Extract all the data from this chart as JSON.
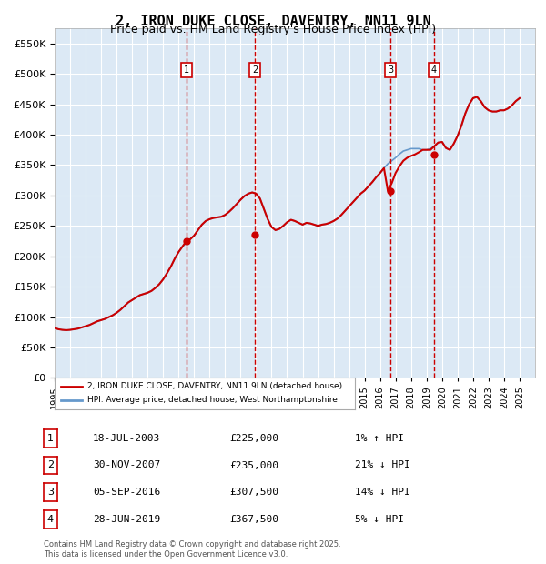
{
  "title": "2, IRON DUKE CLOSE, DAVENTRY, NN11 9LN",
  "subtitle": "Price paid vs. HM Land Registry's House Price Index (HPI)",
  "ylabel": "",
  "xlabel": "",
  "ylim": [
    0,
    575000
  ],
  "yticks": [
    0,
    50000,
    100000,
    150000,
    200000,
    250000,
    300000,
    350000,
    400000,
    450000,
    500000,
    550000
  ],
  "ytick_labels": [
    "£0",
    "£50K",
    "£100K",
    "£150K",
    "£200K",
    "£250K",
    "£300K",
    "£350K",
    "£400K",
    "£450K",
    "£500K",
    "£550K"
  ],
  "xlim_start": 1995.0,
  "xlim_end": 2026.0,
  "background_color": "#dce9f5",
  "plot_bg_color": "#dce9f5",
  "grid_color": "#ffffff",
  "red_line_color": "#cc0000",
  "blue_line_color": "#6699cc",
  "transactions": [
    {
      "num": 1,
      "date": "18-JUL-2003",
      "price": 225000,
      "pct": "1%",
      "dir": "↑",
      "x": 2003.54
    },
    {
      "num": 2,
      "date": "30-NOV-2007",
      "price": 235000,
      "pct": "21%",
      "dir": "↓",
      "x": 2007.92
    },
    {
      "num": 3,
      "date": "05-SEP-2016",
      "price": 307500,
      "pct": "14%",
      "dir": "↓",
      "x": 2016.68
    },
    {
      "num": 4,
      "date": "28-JUN-2019",
      "price": 367500,
      "pct": "5%",
      "dir": "↓",
      "x": 2019.49
    }
  ],
  "legend_property": "2, IRON DUKE CLOSE, DAVENTRY, NN11 9LN (detached house)",
  "legend_hpi": "HPI: Average price, detached house, West Northamptonshire",
  "footer": "Contains HM Land Registry data © Crown copyright and database right 2025.\nThis data is licensed under the Open Government Licence v3.0.",
  "hpi_data": {
    "years": [
      1995.0,
      1995.25,
      1995.5,
      1995.75,
      1996.0,
      1996.25,
      1996.5,
      1996.75,
      1997.0,
      1997.25,
      1997.5,
      1997.75,
      1998.0,
      1998.25,
      1998.5,
      1998.75,
      1999.0,
      1999.25,
      1999.5,
      1999.75,
      2000.0,
      2000.25,
      2000.5,
      2000.75,
      2001.0,
      2001.25,
      2001.5,
      2001.75,
      2002.0,
      2002.25,
      2002.5,
      2002.75,
      2003.0,
      2003.25,
      2003.5,
      2003.75,
      2004.0,
      2004.25,
      2004.5,
      2004.75,
      2005.0,
      2005.25,
      2005.5,
      2005.75,
      2006.0,
      2006.25,
      2006.5,
      2006.75,
      2007.0,
      2007.25,
      2007.5,
      2007.75,
      2008.0,
      2008.25,
      2008.5,
      2008.75,
      2009.0,
      2009.25,
      2009.5,
      2009.75,
      2010.0,
      2010.25,
      2010.5,
      2010.75,
      2011.0,
      2011.25,
      2011.5,
      2011.75,
      2012.0,
      2012.25,
      2012.5,
      2012.75,
      2013.0,
      2013.25,
      2013.5,
      2013.75,
      2014.0,
      2014.25,
      2014.5,
      2014.75,
      2015.0,
      2015.25,
      2015.5,
      2015.75,
      2016.0,
      2016.25,
      2016.5,
      2016.75,
      2017.0,
      2017.25,
      2017.5,
      2017.75,
      2018.0,
      2018.25,
      2018.5,
      2018.75,
      2019.0,
      2019.25,
      2019.5,
      2019.75,
      2020.0,
      2020.25,
      2020.5,
      2020.75,
      2021.0,
      2021.25,
      2021.5,
      2021.75,
      2022.0,
      2022.25,
      2022.5,
      2022.75,
      2023.0,
      2023.25,
      2023.5,
      2023.75,
      2024.0,
      2024.25,
      2024.5,
      2024.75,
      2025.0
    ],
    "hpi_values": [
      82000,
      80000,
      79000,
      78500,
      79000,
      80000,
      81000,
      83000,
      85000,
      87000,
      90000,
      93000,
      95000,
      97000,
      100000,
      103000,
      107000,
      112000,
      118000,
      124000,
      128000,
      132000,
      136000,
      138000,
      140000,
      143000,
      148000,
      154000,
      162000,
      172000,
      183000,
      196000,
      207000,
      216000,
      222000,
      228000,
      234000,
      243000,
      252000,
      258000,
      261000,
      263000,
      264000,
      265000,
      268000,
      273000,
      279000,
      286000,
      293000,
      299000,
      303000,
      305000,
      303000,
      295000,
      278000,
      261000,
      248000,
      243000,
      245000,
      250000,
      256000,
      260000,
      258000,
      255000,
      252000,
      255000,
      254000,
      252000,
      250000,
      252000,
      253000,
      255000,
      258000,
      262000,
      268000,
      275000,
      282000,
      289000,
      296000,
      303000,
      308000,
      315000,
      322000,
      330000,
      337000,
      345000,
      352000,
      357000,
      362000,
      368000,
      373000,
      375000,
      377000,
      377000,
      377000,
      375000,
      375000,
      377000,
      381000,
      387000,
      388000,
      378000,
      375000,
      385000,
      398000,
      415000,
      435000,
      450000,
      460000,
      462000,
      455000,
      445000,
      440000,
      438000,
      438000,
      440000,
      440000,
      443000,
      448000,
      455000,
      460000
    ],
    "property_values": [
      82000,
      80000,
      79000,
      78500,
      79000,
      80000,
      81000,
      83000,
      85000,
      87000,
      90000,
      93000,
      95000,
      97000,
      100000,
      103000,
      107000,
      112000,
      118000,
      124000,
      128000,
      132000,
      136000,
      138000,
      140000,
      143000,
      148000,
      154000,
      162000,
      172000,
      183000,
      196000,
      207000,
      216000,
      225000,
      228000,
      234000,
      243000,
      252000,
      258000,
      261000,
      263000,
      264000,
      265000,
      268000,
      273000,
      279000,
      286000,
      293000,
      299000,
      303000,
      305000,
      303000,
      295000,
      278000,
      261000,
      248000,
      243000,
      245000,
      250000,
      256000,
      260000,
      258000,
      255000,
      252000,
      255000,
      254000,
      252000,
      250000,
      252000,
      253000,
      255000,
      258000,
      262000,
      268000,
      275000,
      282000,
      289000,
      296000,
      303000,
      308000,
      315000,
      322000,
      330000,
      337000,
      345000,
      307500,
      320000,
      337000,
      348000,
      357000,
      362000,
      365000,
      367500,
      371000,
      375000,
      375000,
      375000,
      381000,
      387000,
      388000,
      378000,
      375000,
      385000,
      398000,
      415000,
      435000,
      450000,
      460000,
      462000,
      455000,
      445000,
      440000,
      438000,
      438000,
      440000,
      440000,
      443000,
      448000,
      455000,
      460000
    ]
  }
}
